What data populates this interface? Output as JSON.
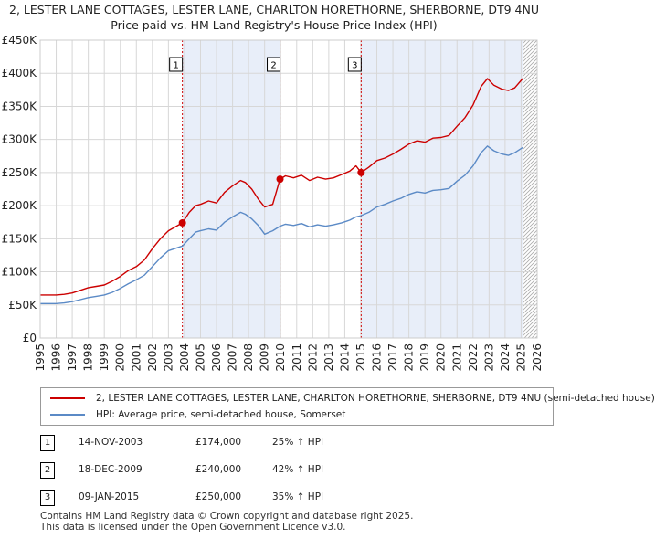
{
  "title_line1": "2, LESTER LANE COTTAGES, LESTER LANE, CHARLTON HORETHORNE, SHERBORNE, DT9 4NU",
  "title_line2": "Price paid vs. HM Land Registry's House Price Index (HPI)",
  "colors": {
    "red": "#cc0000",
    "blue": "#5b8ac6",
    "shade": "#e8eef9",
    "grid": "#d7d7d7"
  },
  "legend": {
    "property_label": "2, LESTER LANE COTTAGES, LESTER LANE, CHARLTON HORETHORNE, SHERBORNE, DT9 4NU (semi-detached house)",
    "hpi_label": "HPI: Average price, semi-detached house, Somerset"
  },
  "sales": [
    {
      "num": "1",
      "date": "14-NOV-2003",
      "price": "£174,000",
      "hpi": "25% ↑ HPI"
    },
    {
      "num": "2",
      "date": "18-DEC-2009",
      "price": "£240,000",
      "hpi": "42% ↑ HPI"
    },
    {
      "num": "3",
      "date": "09-JAN-2015",
      "price": "£250,000",
      "hpi": "35% ↑ HPI"
    }
  ],
  "footer": {
    "line1": "Contains HM Land Registry data © Crown copyright and database right 2025.",
    "line2": "This data is licensed under the Open Government Licence v3.0."
  },
  "chart_data": {
    "type": "line",
    "x_ticks": [
      1995,
      1996,
      1997,
      1998,
      1999,
      2000,
      2001,
      2002,
      2003,
      2004,
      2005,
      2006,
      2007,
      2008,
      2009,
      2010,
      2011,
      2012,
      2013,
      2014,
      2015,
      2016,
      2017,
      2018,
      2019,
      2020,
      2021,
      2022,
      2023,
      2024,
      2025,
      2026
    ],
    "xlim": [
      1995,
      2026
    ],
    "ylim": [
      0,
      450000
    ],
    "y_ticks": [
      0,
      50000,
      100000,
      150000,
      200000,
      250000,
      300000,
      350000,
      400000,
      450000
    ],
    "y_tick_labels": [
      "£0",
      "£50K",
      "£100K",
      "£150K",
      "£200K",
      "£250K",
      "£300K",
      "£350K",
      "£400K",
      "£450K"
    ],
    "shaded_periods": [
      [
        2003.87,
        2009.96
      ],
      [
        2015.02,
        2025.15
      ]
    ],
    "hatch_from": 2025.15,
    "sale_markers": [
      {
        "label": "1",
        "x": 2003.87,
        "y": 174000
      },
      {
        "label": "2",
        "x": 2009.96,
        "y": 240000
      },
      {
        "label": "3",
        "x": 2015.02,
        "y": 250000
      }
    ],
    "series": [
      {
        "name": "2, LESTER LANE COTTAGES, LESTER LANE, CHARLTON HORETHORNE, SHERBORNE, DT9 4NU (semi-detached house)",
        "color": "#cc0000",
        "points": [
          [
            1995,
            65000
          ],
          [
            1996,
            65000
          ],
          [
            1996.5,
            66000
          ],
          [
            1997,
            68000
          ],
          [
            1997.5,
            72000
          ],
          [
            1998,
            76000
          ],
          [
            1998.5,
            78000
          ],
          [
            1999,
            80000
          ],
          [
            1999.5,
            86000
          ],
          [
            2000,
            93000
          ],
          [
            2000.5,
            102000
          ],
          [
            2001,
            108000
          ],
          [
            2001.5,
            118000
          ],
          [
            2002,
            135000
          ],
          [
            2002.5,
            150000
          ],
          [
            2003,
            162000
          ],
          [
            2003.87,
            174000
          ],
          [
            2004.3,
            190000
          ],
          [
            2004.7,
            200000
          ],
          [
            2005,
            202000
          ],
          [
            2005.5,
            207000
          ],
          [
            2006,
            204000
          ],
          [
            2006.5,
            220000
          ],
          [
            2007,
            230000
          ],
          [
            2007.5,
            238000
          ],
          [
            2007.8,
            235000
          ],
          [
            2008.2,
            225000
          ],
          [
            2008.6,
            210000
          ],
          [
            2009,
            198000
          ],
          [
            2009.5,
            202000
          ],
          [
            2009.96,
            240000
          ],
          [
            2010.3,
            245000
          ],
          [
            2010.8,
            242000
          ],
          [
            2011.3,
            246000
          ],
          [
            2011.8,
            238000
          ],
          [
            2012.3,
            243000
          ],
          [
            2012.8,
            240000
          ],
          [
            2013.3,
            242000
          ],
          [
            2013.8,
            247000
          ],
          [
            2014.3,
            252000
          ],
          [
            2014.7,
            260000
          ],
          [
            2015.02,
            250000
          ],
          [
            2015.5,
            258000
          ],
          [
            2016,
            268000
          ],
          [
            2016.5,
            272000
          ],
          [
            2017,
            278000
          ],
          [
            2017.5,
            285000
          ],
          [
            2018,
            293000
          ],
          [
            2018.5,
            298000
          ],
          [
            2019,
            296000
          ],
          [
            2019.5,
            302000
          ],
          [
            2020,
            303000
          ],
          [
            2020.5,
            306000
          ],
          [
            2021,
            320000
          ],
          [
            2021.5,
            333000
          ],
          [
            2022,
            352000
          ],
          [
            2022.5,
            380000
          ],
          [
            2022.9,
            392000
          ],
          [
            2023.3,
            382000
          ],
          [
            2023.8,
            376000
          ],
          [
            2024.2,
            374000
          ],
          [
            2024.6,
            378000
          ],
          [
            2025.1,
            392000
          ]
        ]
      },
      {
        "name": "HPI: Average price, semi-detached house, Somerset",
        "color": "#5b8ac6",
        "points": [
          [
            1995,
            52000
          ],
          [
            1996,
            52000
          ],
          [
            1996.5,
            53000
          ],
          [
            1997,
            55000
          ],
          [
            1997.5,
            58000
          ],
          [
            1998,
            61000
          ],
          [
            1998.5,
            63000
          ],
          [
            1999,
            65000
          ],
          [
            1999.5,
            69000
          ],
          [
            2000,
            75000
          ],
          [
            2000.5,
            82000
          ],
          [
            2001,
            88000
          ],
          [
            2001.5,
            95000
          ],
          [
            2002,
            108000
          ],
          [
            2002.5,
            121000
          ],
          [
            2003,
            132000
          ],
          [
            2003.87,
            139000
          ],
          [
            2004.3,
            150000
          ],
          [
            2004.7,
            160000
          ],
          [
            2005,
            162000
          ],
          [
            2005.5,
            165000
          ],
          [
            2006,
            163000
          ],
          [
            2006.5,
            175000
          ],
          [
            2007,
            183000
          ],
          [
            2007.5,
            190000
          ],
          [
            2007.8,
            187000
          ],
          [
            2008.2,
            180000
          ],
          [
            2008.6,
            170000
          ],
          [
            2009,
            157000
          ],
          [
            2009.5,
            162000
          ],
          [
            2009.96,
            169000
          ],
          [
            2010.3,
            172000
          ],
          [
            2010.8,
            170000
          ],
          [
            2011.3,
            173000
          ],
          [
            2011.8,
            168000
          ],
          [
            2012.3,
            171000
          ],
          [
            2012.8,
            169000
          ],
          [
            2013.3,
            171000
          ],
          [
            2013.8,
            174000
          ],
          [
            2014.3,
            178000
          ],
          [
            2014.7,
            183000
          ],
          [
            2015.02,
            185000
          ],
          [
            2015.5,
            190000
          ],
          [
            2016,
            198000
          ],
          [
            2016.5,
            202000
          ],
          [
            2017,
            207000
          ],
          [
            2017.5,
            211000
          ],
          [
            2018,
            217000
          ],
          [
            2018.5,
            221000
          ],
          [
            2019,
            219000
          ],
          [
            2019.5,
            223000
          ],
          [
            2020,
            224000
          ],
          [
            2020.5,
            226000
          ],
          [
            2021,
            237000
          ],
          [
            2021.5,
            246000
          ],
          [
            2022,
            260000
          ],
          [
            2022.5,
            280000
          ],
          [
            2022.9,
            290000
          ],
          [
            2023.3,
            283000
          ],
          [
            2023.8,
            278000
          ],
          [
            2024.2,
            276000
          ],
          [
            2024.6,
            280000
          ],
          [
            2025.1,
            288000
          ]
        ]
      }
    ]
  }
}
